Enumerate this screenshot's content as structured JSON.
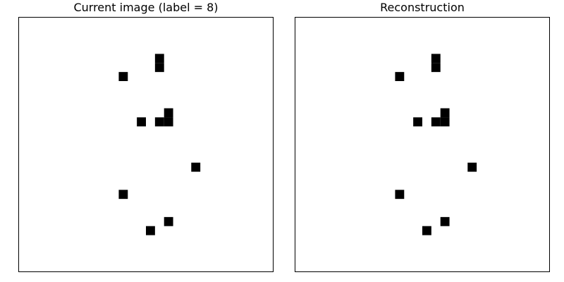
{
  "chart_data": [
    {
      "type": "heatmap",
      "title": "Current image (label = 8)",
      "grid_size": [
        28,
        28
      ],
      "colormap": "binary (white = 0, black = 1)",
      "axes_visible": false,
      "filled_cells": [
        [
          4,
          15
        ],
        [
          5,
          15
        ],
        [
          6,
          11
        ],
        [
          10,
          16
        ],
        [
          11,
          13
        ],
        [
          11,
          15
        ],
        [
          11,
          16
        ],
        [
          16,
          19
        ],
        [
          19,
          11
        ],
        [
          22,
          16
        ],
        [
          23,
          14
        ]
      ]
    },
    {
      "type": "heatmap",
      "title": "Reconstruction",
      "grid_size": [
        28,
        28
      ],
      "colormap": "binary (white = 0, black = 1)",
      "axes_visible": false,
      "filled_cells": [
        [
          4,
          15
        ],
        [
          5,
          15
        ],
        [
          6,
          11
        ],
        [
          10,
          16
        ],
        [
          11,
          13
        ],
        [
          11,
          15
        ],
        [
          11,
          16
        ],
        [
          16,
          19
        ],
        [
          19,
          11
        ],
        [
          22,
          16
        ],
        [
          23,
          14
        ]
      ]
    }
  ],
  "style": {
    "frame_color": "#000000",
    "background_color": "#ffffff",
    "pixel_on_color": "#000000"
  }
}
